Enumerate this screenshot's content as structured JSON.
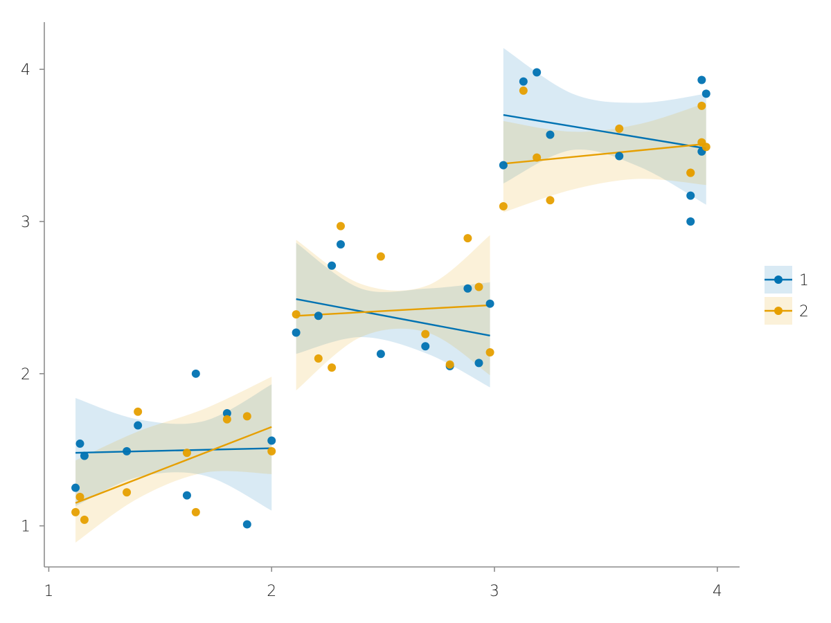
{
  "chart_data": {
    "type": "scatter",
    "title": "",
    "xlabel": "",
    "ylabel": "",
    "xlim": [
      0.98,
      4.1
    ],
    "ylim": [
      0.73,
      4.31
    ],
    "xticks": [
      1,
      2,
      3,
      4
    ],
    "yticks": [
      1,
      2,
      3,
      4
    ],
    "xtick_labels": [
      "1",
      "2",
      "3",
      "4"
    ],
    "ytick_labels": [
      "1",
      "2",
      "3",
      "4"
    ],
    "grid": false,
    "legend_position": "right",
    "series": [
      {
        "name": "1",
        "color": "#0072b2",
        "band_color": "#0072b2",
        "points": [
          {
            "x": 1.12,
            "y": 1.25
          },
          {
            "x": 1.14,
            "y": 1.54
          },
          {
            "x": 1.16,
            "y": 1.46
          },
          {
            "x": 1.35,
            "y": 1.49
          },
          {
            "x": 1.4,
            "y": 1.66
          },
          {
            "x": 1.62,
            "y": 1.2
          },
          {
            "x": 1.66,
            "y": 2.0
          },
          {
            "x": 1.8,
            "y": 1.74
          },
          {
            "x": 1.89,
            "y": 1.01
          },
          {
            "x": 2.0,
            "y": 1.56
          },
          {
            "x": 2.11,
            "y": 2.27
          },
          {
            "x": 2.21,
            "y": 2.38
          },
          {
            "x": 2.27,
            "y": 2.71
          },
          {
            "x": 2.31,
            "y": 2.85
          },
          {
            "x": 2.49,
            "y": 2.13
          },
          {
            "x": 2.69,
            "y": 2.18
          },
          {
            "x": 2.8,
            "y": 2.05
          },
          {
            "x": 2.88,
            "y": 2.56
          },
          {
            "x": 2.93,
            "y": 2.07
          },
          {
            "x": 2.98,
            "y": 2.46
          },
          {
            "x": 3.04,
            "y": 3.37
          },
          {
            "x": 3.13,
            "y": 3.92
          },
          {
            "x": 3.19,
            "y": 3.98
          },
          {
            "x": 3.25,
            "y": 3.57
          },
          {
            "x": 3.56,
            "y": 3.43
          },
          {
            "x": 3.88,
            "y": 3.17
          },
          {
            "x": 3.88,
            "y": 3.0
          },
          {
            "x": 3.93,
            "y": 3.93
          },
          {
            "x": 3.93,
            "y": 3.46
          },
          {
            "x": 3.95,
            "y": 3.84
          }
        ],
        "fits": [
          {
            "x": [
              1.12,
              2.0
            ],
            "y": [
              1.48,
              1.51
            ]
          },
          {
            "x": [
              2.11,
              2.98
            ],
            "y": [
              2.49,
              2.25
            ]
          },
          {
            "x": [
              3.04,
              3.95
            ],
            "y": [
              3.7,
              3.48
            ]
          }
        ],
        "bands": [
          {
            "x": [
              1.12,
              1.4,
              1.7,
              2.0
            ],
            "lower": [
              1.13,
              1.32,
              1.33,
              1.1
            ],
            "upper": [
              1.84,
              1.7,
              1.69,
              1.93
            ]
          },
          {
            "x": [
              2.11,
              2.4,
              2.7,
              2.98
            ],
            "lower": [
              2.13,
              2.24,
              2.13,
              1.91
            ],
            "upper": [
              2.86,
              2.56,
              2.56,
              2.6
            ]
          },
          {
            "x": [
              3.04,
              3.35,
              3.65,
              3.95
            ],
            "lower": [
              3.25,
              3.47,
              3.36,
              3.11
            ],
            "upper": [
              4.14,
              3.84,
              3.78,
              3.84
            ]
          }
        ]
      },
      {
        "name": "2",
        "color": "#e69f00",
        "band_color": "#e69f00",
        "points": [
          {
            "x": 1.12,
            "y": 1.09
          },
          {
            "x": 1.14,
            "y": 1.19
          },
          {
            "x": 1.16,
            "y": 1.04
          },
          {
            "x": 1.35,
            "y": 1.22
          },
          {
            "x": 1.4,
            "y": 1.75
          },
          {
            "x": 1.62,
            "y": 1.48
          },
          {
            "x": 1.66,
            "y": 1.09
          },
          {
            "x": 1.8,
            "y": 1.7
          },
          {
            "x": 1.89,
            "y": 1.72
          },
          {
            "x": 2.0,
            "y": 1.49
          },
          {
            "x": 2.11,
            "y": 2.39
          },
          {
            "x": 2.21,
            "y": 2.1
          },
          {
            "x": 2.27,
            "y": 2.04
          },
          {
            "x": 2.31,
            "y": 2.97
          },
          {
            "x": 2.49,
            "y": 2.77
          },
          {
            "x": 2.69,
            "y": 2.26
          },
          {
            "x": 2.8,
            "y": 2.06
          },
          {
            "x": 2.88,
            "y": 2.89
          },
          {
            "x": 2.93,
            "y": 2.57
          },
          {
            "x": 2.98,
            "y": 2.14
          },
          {
            "x": 3.04,
            "y": 3.1
          },
          {
            "x": 3.13,
            "y": 3.86
          },
          {
            "x": 3.19,
            "y": 3.42
          },
          {
            "x": 3.25,
            "y": 3.14
          },
          {
            "x": 3.56,
            "y": 3.61
          },
          {
            "x": 3.88,
            "y": 3.32
          },
          {
            "x": 3.88,
            "y": 3.32
          },
          {
            "x": 3.93,
            "y": 3.76
          },
          {
            "x": 3.93,
            "y": 3.52
          },
          {
            "x": 3.95,
            "y": 3.49
          }
        ],
        "fits": [
          {
            "x": [
              1.12,
              2.0
            ],
            "y": [
              1.15,
              1.65
            ]
          },
          {
            "x": [
              2.11,
              2.98
            ],
            "y": [
              2.38,
              2.45
            ]
          },
          {
            "x": [
              3.04,
              3.95
            ],
            "y": [
              3.38,
              3.51
            ]
          }
        ],
        "bands": [
          {
            "x": [
              1.12,
              1.4,
              1.7,
              2.0
            ],
            "lower": [
              0.89,
              1.18,
              1.35,
              1.34
            ],
            "upper": [
              1.43,
              1.62,
              1.77,
              1.98
            ]
          },
          {
            "x": [
              2.11,
              2.4,
              2.7,
              2.98
            ],
            "lower": [
              1.89,
              2.24,
              2.27,
              1.99
            ],
            "upper": [
              2.88,
              2.59,
              2.58,
              2.91
            ]
          },
          {
            "x": [
              3.04,
              3.35,
              3.65,
              3.95
            ],
            "lower": [
              3.06,
              3.21,
              3.28,
              3.24
            ],
            "upper": [
              3.66,
              3.59,
              3.64,
              3.78
            ]
          }
        ]
      }
    ]
  }
}
